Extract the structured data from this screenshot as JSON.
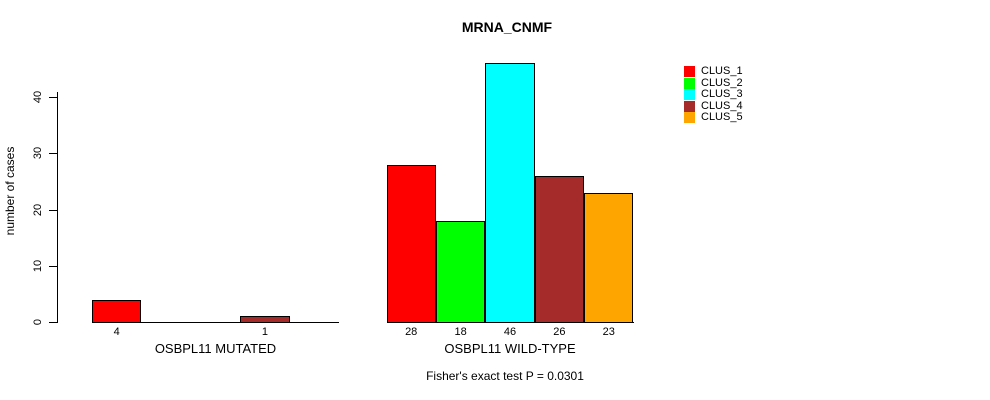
{
  "chart_data": {
    "type": "bar",
    "title": "MRNA_CNMF",
    "ylabel": "number of cases",
    "ylim": [
      0,
      46
    ],
    "yticks": [
      0,
      10,
      20,
      30,
      40
    ],
    "grid": false,
    "legend_position": "right",
    "series": [
      {
        "name": "CLUS_1",
        "color": "#FF0000"
      },
      {
        "name": "CLUS_2",
        "color": "#00FF00"
      },
      {
        "name": "CLUS_3",
        "color": "#00FFFF"
      },
      {
        "name": "CLUS_4",
        "color": "#A52A2A"
      },
      {
        "name": "CLUS_5",
        "color": "#FFA500"
      }
    ],
    "groups": [
      {
        "label": "OSBPL11 MUTATED",
        "values": [
          4,
          0,
          0,
          1,
          0
        ]
      },
      {
        "label": "OSBPL11 WILD-TYPE",
        "values": [
          28,
          18,
          46,
          26,
          23
        ]
      }
    ],
    "note": "Fisher's exact test P = 0.0301"
  }
}
